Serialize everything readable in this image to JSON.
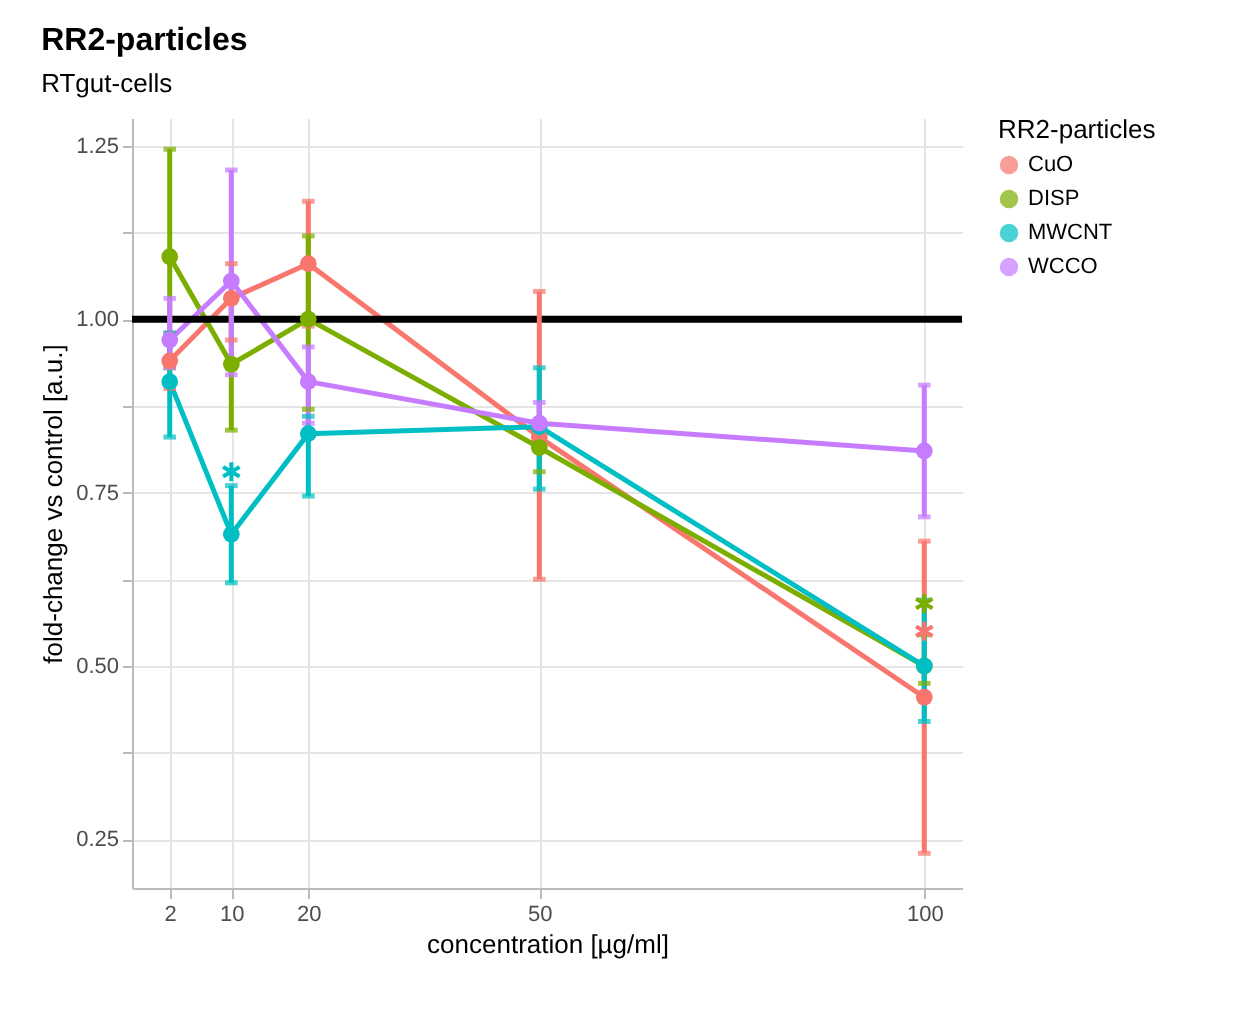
{
  "chart_data": {
    "type": "line",
    "title": "RR2-particles",
    "subtitle": "RTgut-cells",
    "xlabel": "concentration [µg/ml]",
    "ylabel": "fold-change vs control [a.u.]",
    "legend_title": "RR2-particles",
    "x": [
      2,
      10,
      20,
      50,
      100
    ],
    "series": [
      {
        "name": "CuO",
        "color": "#f8766d",
        "values": [
          0.94,
          1.03,
          1.08,
          0.83,
          0.455
        ],
        "errors": [
          [
            0.9,
            0.98
          ],
          [
            0.97,
            1.08
          ],
          [
            0.99,
            1.17
          ],
          [
            0.625,
            1.04
          ],
          [
            0.23,
            0.68
          ]
        ]
      },
      {
        "name": "DISP",
        "color": "#7cae00",
        "values": [
          1.09,
          0.935,
          1.0,
          0.815,
          0.5
        ],
        "errors": [
          [
            0.93,
            1.245
          ],
          [
            0.84,
            1.03
          ],
          [
            0.87,
            1.12
          ],
          [
            0.78,
            0.85
          ],
          [
            0.475,
            0.545
          ]
        ]
      },
      {
        "name": "MWCNT",
        "color": "#00bfc4",
        "values": [
          0.91,
          0.69,
          0.835,
          0.845,
          0.5
        ],
        "errors": [
          [
            0.83,
            0.98
          ],
          [
            0.62,
            0.76
          ],
          [
            0.745,
            0.86
          ],
          [
            0.755,
            0.93
          ],
          [
            0.42,
            0.595
          ]
        ]
      },
      {
        "name": "WCCO",
        "color": "#c77cff",
        "values": [
          0.97,
          1.055,
          0.91,
          0.85,
          0.81
        ],
        "errors": [
          [
            0.93,
            1.03
          ],
          [
            0.92,
            1.215
          ],
          [
            0.85,
            0.96
          ],
          [
            0.815,
            0.88
          ],
          [
            0.715,
            0.905
          ]
        ]
      },
      {
        "type": "scatter",
        "marker": "cross",
        "color": "#00bfc4",
        "values": [
          null,
          0.78,
          null,
          null,
          null
        ]
      },
      {
        "type": "scatter",
        "marker": "cross",
        "color": "#7cae00",
        "values": [
          null,
          null,
          null,
          null,
          0.59
        ]
      },
      {
        "type": "scatter",
        "marker": "cross",
        "color": "#f8766d",
        "values": [
          null,
          null,
          null,
          null,
          0.55
        ]
      }
    ],
    "xlim": [
      -2.9,
      104.9
    ],
    "xticks": [
      2,
      10,
      20,
      50,
      100
    ],
    "ylim": [
      0.18,
      1.29
    ],
    "yticks": [
      0.25,
      {
        "value": 0.375,
        "label": null
      },
      {
        "value": 0.5,
        "label": "0.50"
      },
      {
        "value": 0.625,
        "label": null
      },
      0.75,
      {
        "value": 0.875,
        "label": null
      },
      {
        "value": 1,
        "label": "1.00"
      },
      {
        "value": 1.125,
        "label": null
      },
      1.25
    ],
    "ref_lines": [
      {
        "axis": "y",
        "value": 1,
        "color": "#000000"
      }
    ],
    "grid": true,
    "legend": "right",
    "marker": "circle",
    "line_style": "solid"
  }
}
